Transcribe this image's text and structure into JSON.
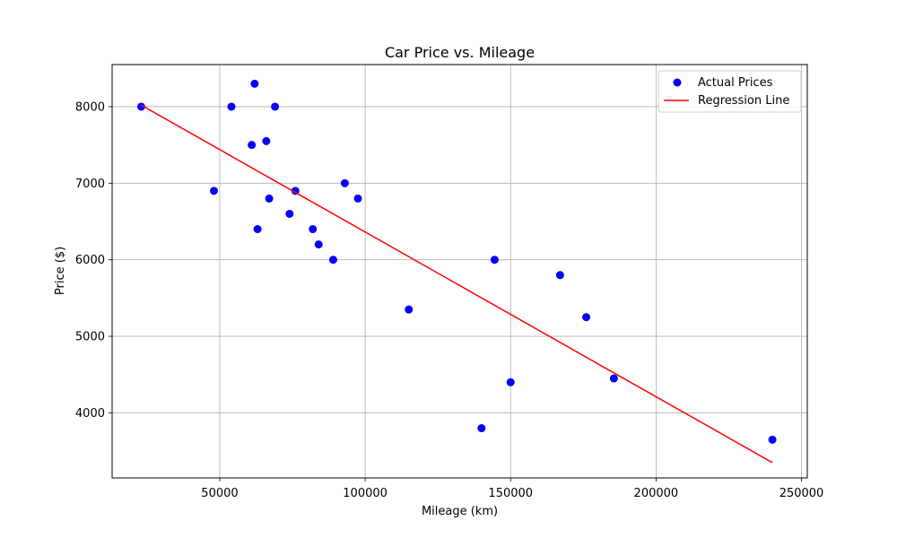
{
  "chart_data": {
    "type": "scatter",
    "title": "Car Price vs. Mileage",
    "xlabel": "Mileage (km)",
    "ylabel": "Price ($)",
    "xlim": [
      13000,
      252000
    ],
    "ylim": [
      3150,
      8550
    ],
    "xticks": [
      50000,
      100000,
      150000,
      200000,
      250000
    ],
    "xtick_labels": [
      "50000",
      "100000",
      "150000",
      "200000",
      "250000"
    ],
    "yticks": [
      4000,
      5000,
      6000,
      7000,
      8000
    ],
    "ytick_labels": [
      "4000",
      "5000",
      "6000",
      "7000",
      "8000"
    ],
    "grid": true,
    "legend_position": "top-right",
    "series": [
      {
        "name": "Actual Prices",
        "kind": "scatter",
        "color": "#0000ff",
        "points": [
          {
            "x": 23000,
            "y": 8000
          },
          {
            "x": 48000,
            "y": 6900
          },
          {
            "x": 54000,
            "y": 8000
          },
          {
            "x": 61000,
            "y": 7500
          },
          {
            "x": 62000,
            "y": 8300
          },
          {
            "x": 63000,
            "y": 6400
          },
          {
            "x": 66000,
            "y": 7550
          },
          {
            "x": 67000,
            "y": 6800
          },
          {
            "x": 69000,
            "y": 8000
          },
          {
            "x": 74000,
            "y": 6600
          },
          {
            "x": 76000,
            "y": 6900
          },
          {
            "x": 82000,
            "y": 6400
          },
          {
            "x": 84000,
            "y": 6200
          },
          {
            "x": 89000,
            "y": 6000
          },
          {
            "x": 93000,
            "y": 7000
          },
          {
            "x": 97500,
            "y": 6800
          },
          {
            "x": 115000,
            "y": 5350
          },
          {
            "x": 140000,
            "y": 3800
          },
          {
            "x": 144500,
            "y": 6000
          },
          {
            "x": 150000,
            "y": 4400
          },
          {
            "x": 167000,
            "y": 5800
          },
          {
            "x": 176000,
            "y": 5250
          },
          {
            "x": 185500,
            "y": 4450
          },
          {
            "x": 240000,
            "y": 3650
          }
        ]
      },
      {
        "name": "Regression Line",
        "kind": "line",
        "color": "#ff0000",
        "points": [
          {
            "x": 23000,
            "y": 8020
          },
          {
            "x": 240000,
            "y": 3350
          }
        ]
      }
    ]
  }
}
